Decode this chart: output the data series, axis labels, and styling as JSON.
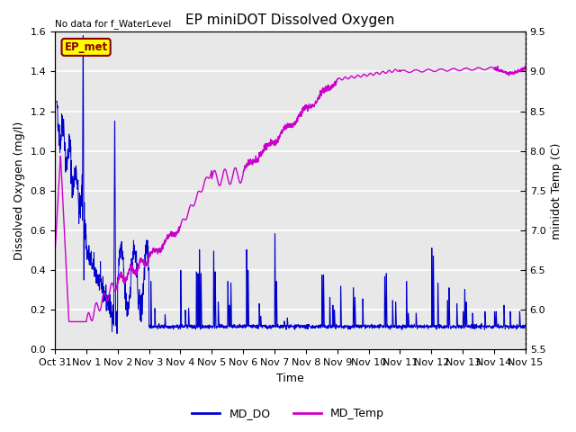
{
  "title": "EP miniDOT Dissolved Oxygen",
  "top_left_text": "No data for f_WaterLevel",
  "annotation_text": "EP_met",
  "xlabel": "Time",
  "ylabel_left": "Dissolved Oxygen (mg/l)",
  "ylabel_right": "minidot Temp (C)",
  "xlim_days": [
    0,
    15
  ],
  "ylim_left": [
    0.0,
    1.6
  ],
  "ylim_right": [
    5.5,
    9.5
  ],
  "yticks_left": [
    0.0,
    0.2,
    0.4,
    0.6,
    0.8,
    1.0,
    1.2,
    1.4,
    1.6
  ],
  "yticks_right": [
    5.5,
    6.0,
    6.5,
    7.0,
    7.5,
    8.0,
    8.5,
    9.0,
    9.5
  ],
  "xtick_labels": [
    "Oct 31",
    "Nov 1",
    "Nov 2",
    "Nov 3",
    "Nov 4",
    "Nov 5",
    "Nov 6",
    "Nov 7",
    "Nov 8",
    "Nov 9",
    "Nov 10",
    "Nov 11",
    "Nov 12",
    "Nov 13",
    "Nov 14",
    "Nov 15"
  ],
  "do_color": "#0000cc",
  "temp_color": "#cc00cc",
  "background_color": "#e8e8e8",
  "grid_color": "#ffffff",
  "annotation_bg": "#ffff00",
  "annotation_border": "#8b0000",
  "annotation_text_color": "#8b0000",
  "legend_labels": [
    "MD_DO",
    "MD_Temp"
  ],
  "title_fontsize": 11,
  "axis_label_fontsize": 9,
  "tick_label_fontsize": 8,
  "legend_fontsize": 9
}
